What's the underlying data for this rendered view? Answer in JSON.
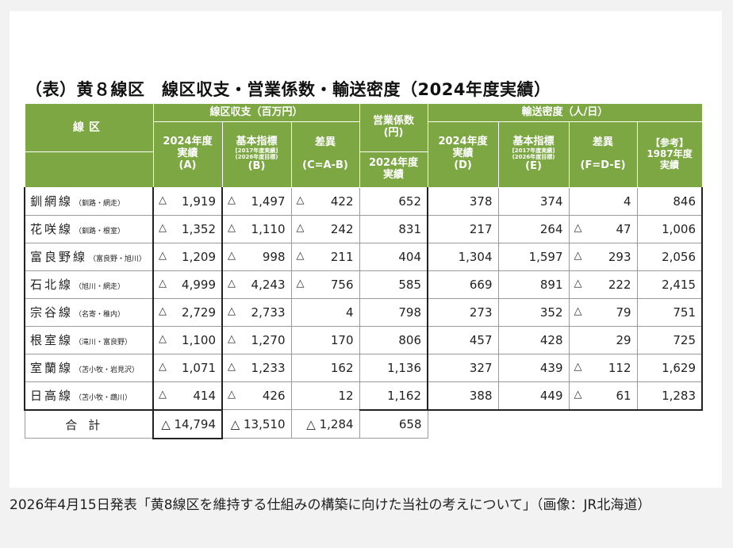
{
  "title": "（表）黄８線区　線区収支・営業係数・輸送密度（2024年度実績）",
  "header": {
    "line": "線区",
    "balance_group": "線区収支（百万円）",
    "coef_group": "営業係数\n(円)",
    "density_group": "輸送密度（人/日）",
    "a_main": "2024年度\n実績",
    "a_code": "(A)",
    "b_main": "基本指標",
    "b_note1": "[2017年度実績]",
    "b_note2": "(2026年度目標)",
    "b_code": "(B)",
    "c_main": "差異",
    "c_code": "(C=A-B)",
    "coef_sub": "2024年度\n実績",
    "d_main": "2024年度\n実績",
    "d_code": "(D)",
    "e_main": "基本指標",
    "e_note1": "[2017年度実績]",
    "e_note2": "(2026年度目標)",
    "e_code": "(E)",
    "f_main": "差異",
    "f_code": "(F=D-E)",
    "ref_main": "【参考】\n1987年度\n実績"
  },
  "triangle": "△",
  "rows": [
    {
      "name": "釧網線",
      "section": "（釧路・網走）",
      "a": "1,919",
      "a_neg": true,
      "b": "1,497",
      "b_neg": true,
      "c": "422",
      "c_neg": true,
      "coef": "652",
      "d": "378",
      "e": "374",
      "f": "4",
      "f_neg": false,
      "ref": "846"
    },
    {
      "name": "花咲線",
      "section": "（釧路・根室）",
      "a": "1,352",
      "a_neg": true,
      "b": "1,110",
      "b_neg": true,
      "c": "242",
      "c_neg": true,
      "coef": "831",
      "d": "217",
      "e": "264",
      "f": "47",
      "f_neg": true,
      "ref": "1,006"
    },
    {
      "name": "富良野線",
      "section": "（富良野・旭川）",
      "a": "1,209",
      "a_neg": true,
      "b": "998",
      "b_neg": true,
      "c": "211",
      "c_neg": true,
      "coef": "404",
      "d": "1,304",
      "e": "1,597",
      "f": "293",
      "f_neg": true,
      "ref": "2,056"
    },
    {
      "name": "石北線",
      "section": "（旭川・網走）",
      "a": "4,999",
      "a_neg": true,
      "b": "4,243",
      "b_neg": true,
      "c": "756",
      "c_neg": true,
      "coef": "585",
      "d": "669",
      "e": "891",
      "f": "222",
      "f_neg": true,
      "ref": "2,415"
    },
    {
      "name": "宗谷線",
      "section": "（名寄・稚内）",
      "a": "2,729",
      "a_neg": true,
      "b": "2,733",
      "b_neg": true,
      "c": "4",
      "c_neg": false,
      "coef": "798",
      "d": "273",
      "e": "352",
      "f": "79",
      "f_neg": true,
      "ref": "751"
    },
    {
      "name": "根室線",
      "section": "（滝川・富良野）",
      "a": "1,100",
      "a_neg": true,
      "b": "1,270",
      "b_neg": true,
      "c": "170",
      "c_neg": false,
      "coef": "806",
      "d": "457",
      "e": "428",
      "f": "29",
      "f_neg": false,
      "ref": "725"
    },
    {
      "name": "室蘭線",
      "section": "（苫小牧・岩見沢）",
      "a": "1,071",
      "a_neg": true,
      "b": "1,233",
      "b_neg": true,
      "c": "162",
      "c_neg": false,
      "coef": "1,136",
      "d": "327",
      "e": "439",
      "f": "112",
      "f_neg": true,
      "ref": "1,629"
    },
    {
      "name": "日高線",
      "section": "（苫小牧・鵡川）",
      "a": "414",
      "a_neg": true,
      "b": "426",
      "b_neg": true,
      "c": "12",
      "c_neg": false,
      "coef": "1,162",
      "d": "388",
      "e": "449",
      "f": "61",
      "f_neg": true,
      "ref": "1,283"
    }
  ],
  "total": {
    "label": "合計",
    "a": "△ 14,794",
    "b": "△ 13,510",
    "c": "△ 1,284",
    "coef": "658"
  },
  "caption": "2026年4月15日発表「黄8線区を維持する仕組みの構築に向けた当社の考えについて」（画像：JR北海道）",
  "colors": {
    "header_green": "#7ca743",
    "panel": "#ffffff",
    "background": "#f2f2f2"
  }
}
